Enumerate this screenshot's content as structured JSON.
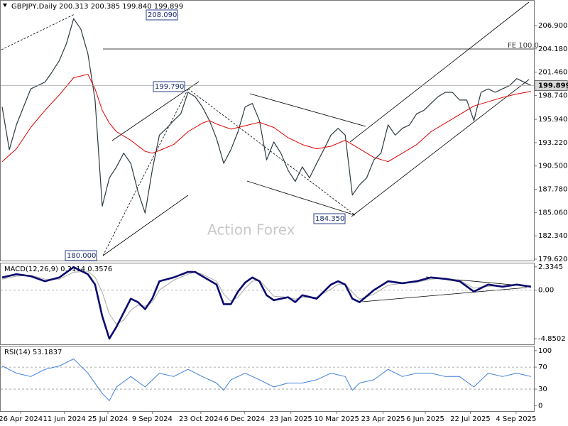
{
  "chart_data": [
    {
      "type": "line",
      "title": "GBPJPY,Daily  200.313 200.385 199.840 199.899",
      "xlim": [
        -0.2,
        74.4
      ],
      "ylim": [
        179.45,
        209.8
      ],
      "yticks": [
        {
          "value": 206.9,
          "label": "206.900"
        },
        {
          "value": 204.18,
          "label": "204.180"
        },
        {
          "value": 201.46,
          "label": "201.460"
        },
        {
          "value": 198.74,
          "label": "198.740"
        },
        {
          "value": 195.94,
          "label": "195.940"
        },
        {
          "value": 193.22,
          "label": "193.220"
        },
        {
          "value": 190.5,
          "label": "190.500"
        },
        {
          "value": 187.78,
          "label": "187.780"
        },
        {
          "value": 185.06,
          "label": "185.060"
        },
        {
          "value": 182.34,
          "label": "182.340"
        },
        {
          "value": 179.62,
          "label": "179.620"
        }
      ],
      "last_price": {
        "value": 199.899,
        "label": "199.899"
      },
      "annotations": [
        "208.090",
        "199.790",
        "180.000",
        "184.350",
        "FE 100.0"
      ],
      "watermark": "Action Forex",
      "series": [
        {
          "color": "#2b3a42",
          "width": 1.2,
          "x": [
            0,
            1,
            2,
            3,
            4,
            5,
            6,
            7,
            8,
            9,
            10,
            11,
            12,
            13,
            14,
            15,
            16,
            17,
            18,
            19,
            20,
            21,
            22,
            23,
            24,
            25,
            26,
            27,
            28,
            29,
            30,
            31,
            32,
            33,
            34,
            35,
            36,
            37,
            38,
            39,
            40,
            41,
            42,
            43,
            44,
            45,
            46,
            47,
            48,
            49,
            50,
            51,
            52,
            53,
            54,
            55,
            56,
            57,
            58,
            59,
            60,
            61,
            62,
            63,
            64,
            65,
            66,
            67,
            68,
            69,
            70,
            71,
            72,
            73,
            74
          ],
          "values": [
            197.4,
            192.4,
            195.3,
            197.4,
            199.5,
            199.9,
            200.3,
            201.5,
            202.8,
            204.8,
            207.7,
            206.5,
            203.6,
            198.2,
            185.8,
            189.1,
            190.4,
            192.0,
            190.8,
            187.5,
            185.0,
            190.0,
            194.1,
            194.9,
            195.8,
            196.6,
            199.1,
            198.6,
            197.4,
            195.8,
            193.7,
            190.8,
            192.4,
            194.5,
            197.4,
            197.8,
            195.8,
            191.2,
            193.3,
            192.0,
            190.0,
            188.7,
            190.4,
            189.1,
            190.8,
            192.4,
            194.1,
            194.9,
            194.1,
            187.1,
            188.3,
            189.1,
            191.2,
            192.0,
            195.3,
            194.1,
            194.9,
            195.3,
            196.6,
            197.0,
            197.8,
            198.6,
            199.1,
            199.1,
            198.2,
            198.2,
            195.8,
            199.1,
            199.5,
            199.1,
            199.5,
            199.9,
            200.7,
            200.3,
            199.9
          ]
        },
        {
          "color": "#e00000",
          "width": 1,
          "x": [
            0,
            2,
            4,
            6,
            8,
            10,
            12,
            13,
            14,
            15,
            16,
            18,
            20,
            21,
            22,
            24,
            26,
            28,
            29,
            30,
            32,
            34,
            36,
            38,
            40,
            42,
            44,
            46,
            48,
            50,
            52,
            54,
            56,
            58,
            60,
            62,
            64,
            66,
            68,
            70,
            72,
            74
          ],
          "values": [
            191.0,
            192.5,
            195.0,
            197.0,
            198.8,
            200.8,
            201.2,
            199.5,
            197.0,
            195.5,
            194.5,
            193.5,
            192.2,
            192.0,
            192.3,
            193.0,
            194.5,
            195.5,
            195.8,
            195.4,
            194.8,
            195.2,
            195.6,
            195.0,
            193.8,
            193.0,
            192.5,
            192.8,
            193.5,
            192.5,
            191.5,
            191.0,
            192.0,
            193.0,
            194.5,
            195.5,
            196.5,
            197.5,
            198.0,
            198.5,
            198.9,
            199.2
          ]
        }
      ]
    },
    {
      "type": "line",
      "title": "MACD(12,26,9) 0.3114 0.3576",
      "xlim": [
        -0.2,
        74.4
      ],
      "ylim": [
        -5.42,
        2.68
      ],
      "yticks": [
        2.3345,
        {
          "value": 0,
          "label": "0.00"
        },
        -4.8502
      ],
      "dashed_levels": [
        0
      ],
      "series": [
        {
          "color": "#aaaaaa",
          "width": 1,
          "x": [
            0,
            2,
            4,
            6,
            8,
            10,
            12,
            13,
            14,
            15,
            16,
            17,
            18,
            19,
            20,
            21,
            22,
            24,
            26,
            27,
            28,
            30,
            31,
            32,
            33,
            34,
            35,
            36,
            37,
            38,
            40,
            41,
            42,
            44,
            46,
            47,
            48,
            49,
            50,
            52,
            54,
            56,
            58,
            60,
            62,
            64,
            66,
            68,
            70,
            72,
            74
          ],
          "values": [
            1.1,
            1.4,
            1.5,
            1.1,
            1.1,
            1.8,
            1.9,
            1.3,
            -0.2,
            -2.4,
            -3.4,
            -3.0,
            -2.0,
            -1.5,
            -1.6,
            -1.2,
            0.0,
            1.0,
            1.6,
            1.8,
            1.6,
            0.9,
            -0.4,
            -1.1,
            -0.7,
            0.2,
            0.9,
            1.0,
            0.2,
            -0.6,
            -0.7,
            -0.9,
            -0.7,
            -0.7,
            0.1,
            0.6,
            0.6,
            -0.2,
            -0.9,
            -0.4,
            0.5,
            0.7,
            0.8,
            1.1,
            1.2,
            1.0,
            0.2,
            0.4,
            0.4,
            0.5,
            0.4
          ]
        },
        {
          "color": "#0a0a6e",
          "width": 2.6,
          "x": [
            0,
            2,
            4,
            6,
            8,
            10,
            12,
            13,
            14,
            15,
            16,
            17,
            18,
            19,
            20,
            21,
            22,
            24,
            26,
            27,
            28,
            30,
            31,
            32,
            33,
            34,
            35,
            36,
            37,
            38,
            40,
            41,
            42,
            44,
            46,
            47,
            48,
            49,
            50,
            52,
            54,
            56,
            58,
            60,
            62,
            64,
            66,
            68,
            70,
            72,
            74
          ],
          "values": [
            1.27,
            1.6,
            1.4,
            0.9,
            1.27,
            2.3,
            1.6,
            0.56,
            -2.6,
            -4.85,
            -3.66,
            -2.25,
            -0.85,
            -1.2,
            -1.9,
            -0.85,
            0.9,
            1.27,
            1.83,
            1.83,
            1.4,
            0.56,
            -1.4,
            -1.4,
            -0.14,
            0.77,
            1.27,
            0.9,
            -0.5,
            -1.0,
            -0.7,
            -1.2,
            -0.5,
            -0.85,
            0.56,
            0.9,
            0.56,
            -0.85,
            -1.2,
            0.0,
            0.9,
            0.7,
            0.9,
            1.27,
            1.13,
            0.9,
            -0.14,
            0.56,
            0.35,
            0.56,
            0.35
          ]
        }
      ]
    },
    {
      "type": "line",
      "title": "RSI(14) 53.1837",
      "xlim": [
        -0.2,
        74.4
      ],
      "ylim": [
        -10,
        107.6
      ],
      "yticks": [
        100,
        70,
        30,
        0
      ],
      "dashed_levels": [
        70,
        30
      ],
      "xticks": [
        {
          "value": 2.6,
          "label": "26 Apr 2024"
        },
        {
          "value": 8.7,
          "label": "11 Jun 2024"
        },
        {
          "value": 14.8,
          "label": "25 Jul 2024"
        },
        {
          "value": 21,
          "label": "9 Sep 2024"
        },
        {
          "value": 27.8,
          "label": "23 Oct 2024"
        },
        {
          "value": 33.9,
          "label": "6 Dec 2024"
        },
        {
          "value": 40.4,
          "label": "23 Jan 2025"
        },
        {
          "value": 46.8,
          "label": "10 Mar 2025"
        },
        {
          "value": 53.3,
          "label": "23 Apr 2025"
        },
        {
          "value": 59.2,
          "label": "6 Jun 2025"
        },
        {
          "value": 65.5,
          "label": "22 Jul 2025"
        },
        {
          "value": 71.9,
          "label": "4 Sep 2025"
        }
      ],
      "series": [
        {
          "color": "#3f7fd6",
          "width": 1,
          "x": [
            0,
            2,
            4,
            6,
            8,
            10,
            12,
            14,
            15,
            16,
            18,
            20,
            22,
            24,
            26,
            28,
            30,
            31,
            32,
            34,
            36,
            38,
            40,
            42,
            44,
            46,
            48,
            49,
            50,
            52,
            54,
            56,
            58,
            60,
            62,
            64,
            66,
            68,
            70,
            72,
            74
          ],
          "values": [
            72,
            59,
            53,
            66,
            72,
            85,
            59,
            22,
            9,
            34,
            53,
            34,
            59,
            53,
            66,
            53,
            41,
            28,
            47,
            59,
            47,
            34,
            41,
            41,
            47,
            59,
            53,
            28,
            41,
            47,
            66,
            53,
            59,
            59,
            53,
            53,
            34,
            59,
            53,
            59,
            53
          ]
        }
      ]
    }
  ]
}
